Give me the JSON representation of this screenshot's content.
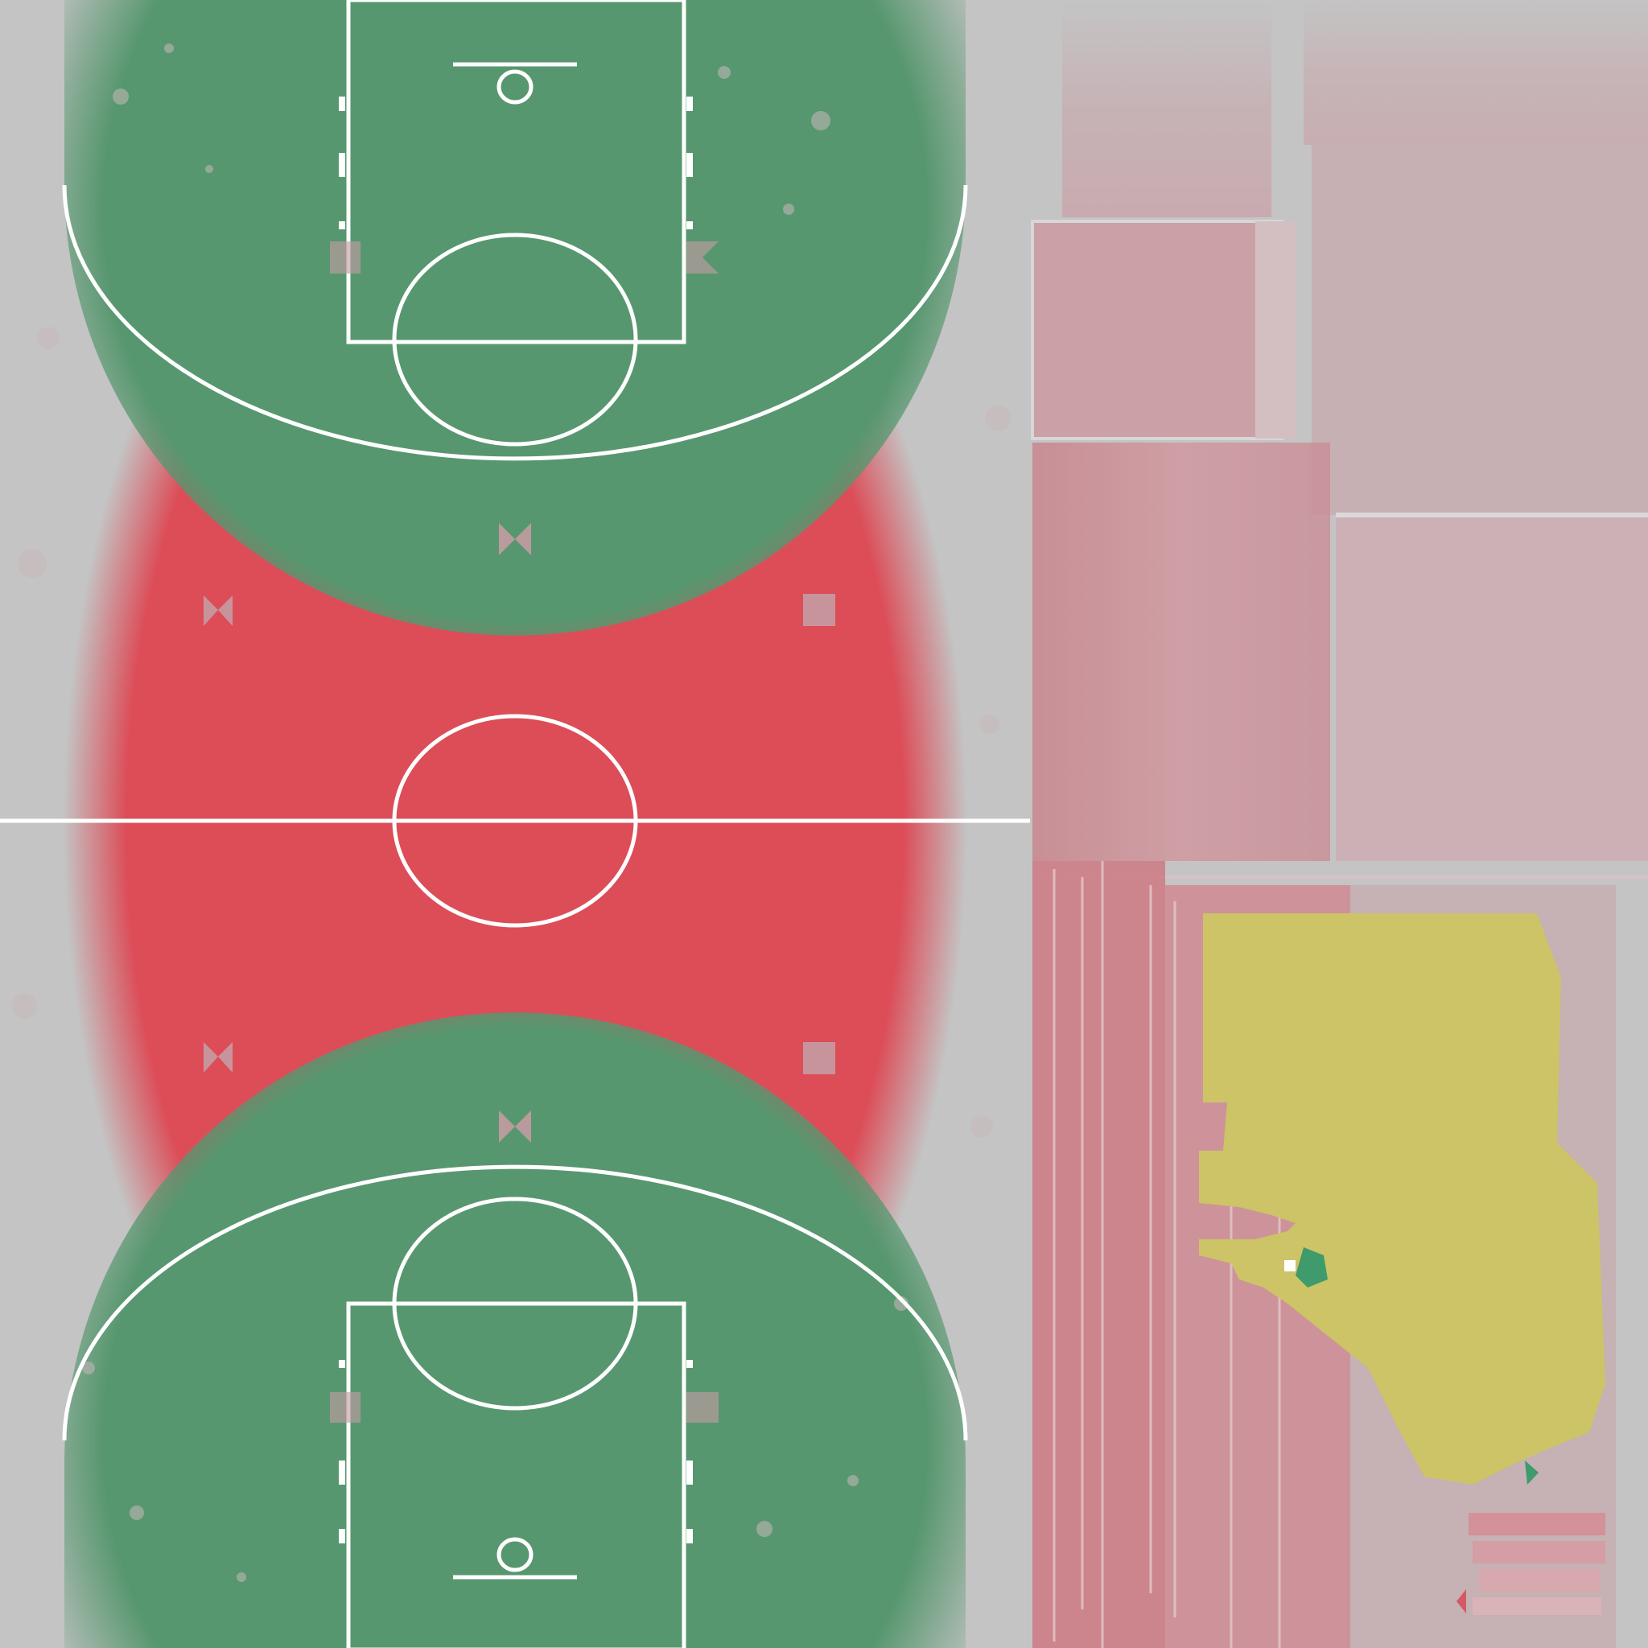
{
  "texture": {
    "kind": "basketball court texture atlas",
    "colors": {
      "background": "#c4c4c4",
      "court_red": "#dc4d58",
      "key_green": "#57976f",
      "lines": "#ffffff",
      "marker_grey": "#c49ca4",
      "panel_pink": "#c9a4aa",
      "panel_light": "#d3bfc2",
      "yellow_patch": "#ccc467",
      "accent_green": "#3f9a6c"
    },
    "court": {
      "elements": [
        "top-key-area",
        "top-three-point-arc",
        "top-free-throw-circle",
        "top-basket",
        "center-line",
        "center-circle",
        "bottom-key-area",
        "bottom-three-point-arc",
        "bottom-free-throw-circle",
        "bottom-basket",
        "bowtie-markers"
      ]
    },
    "side_panels": {
      "elements": [
        "pink-panels",
        "grunge-strips",
        "yellow-patch"
      ]
    }
  }
}
